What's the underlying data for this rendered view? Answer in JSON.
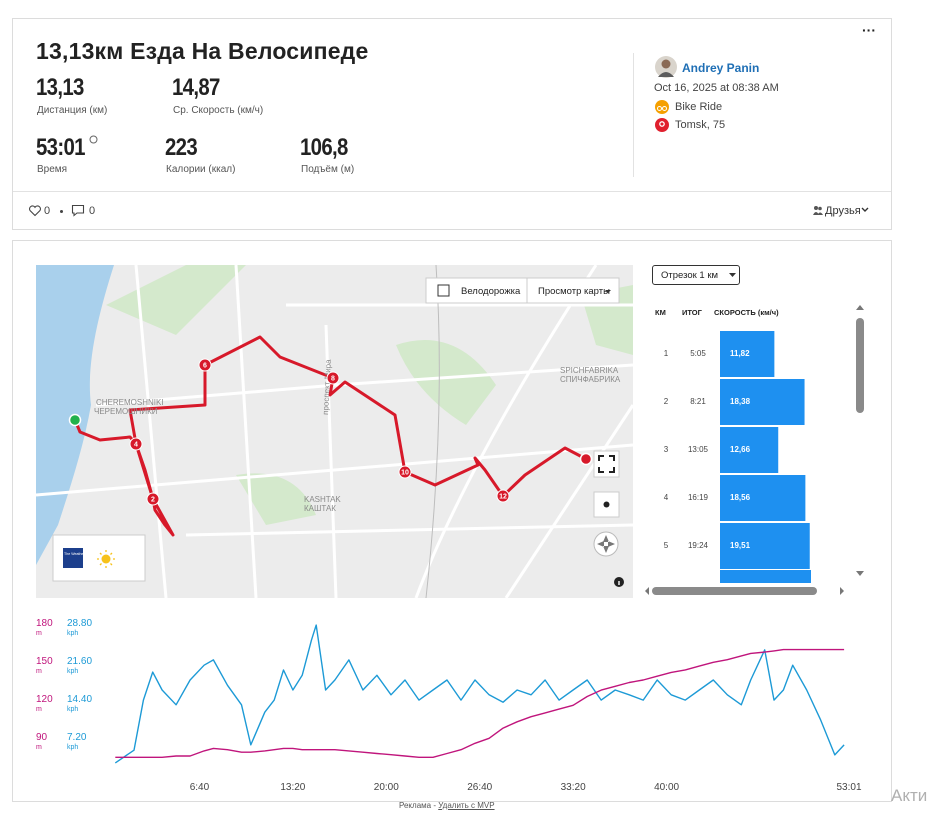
{
  "header": {
    "title": "13,13км Езда На Велосипеде",
    "stats": [
      {
        "value": "13,13",
        "label": "Дистанция (км)"
      },
      {
        "value": "14,87",
        "label": "Ср. Скорость (км/ч)"
      },
      {
        "value": "53:01",
        "label": "Время"
      },
      {
        "value": "223",
        "label": "Калории (ккал)"
      },
      {
        "value": "106,8",
        "label": "Подъём (м)"
      }
    ]
  },
  "athlete": {
    "name": "Andrey Panin",
    "date": "Oct 16, 2025 at 08:38 AM",
    "activity": "Bike Ride",
    "location": "Tomsk, 75"
  },
  "social": {
    "kudos": "0",
    "comments": "0",
    "visibility": "Друзья"
  },
  "map": {
    "toggle": "Велодорожка",
    "view_button": "Просмотр карты",
    "labels": [
      "CHEREMOSHNIKI",
      "ЧЕРЕМОШНИКИ",
      "проспект Мира",
      "KASHTAK",
      "КАШТАК",
      "SPICHFABRIKA",
      "СПИЧФАБРИКА"
    ],
    "markers": [
      "2",
      "4",
      "6",
      "8",
      "10",
      "12"
    ],
    "weather": "The Weather Channel"
  },
  "splits": {
    "selector": "Отрезок 1 км",
    "headers": [
      "КМ",
      "ИТОГ",
      "СКОРОСТЬ (км/ч)"
    ],
    "categories": [
      "1",
      "2",
      "3",
      "4",
      "5"
    ],
    "times": [
      "5:05",
      "8:21",
      "13:05",
      "16:19",
      "19:24"
    ],
    "values": [
      11.82,
      18.38,
      12.66,
      18.56,
      19.51
    ],
    "value_labels": [
      "11,82",
      "18,38",
      "12,66",
      "18,56",
      "19,51"
    ],
    "color": "#1e90f0"
  },
  "profile": {
    "type": "line",
    "x": [
      40,
      120,
      160,
      200,
      240,
      300,
      360,
      420,
      460,
      520,
      580,
      620,
      680,
      720,
      760,
      800,
      840,
      880,
      900,
      940,
      980,
      1040,
      1100,
      1160,
      1220,
      1280,
      1340,
      1400,
      1460,
      1520,
      1580,
      1640,
      1700,
      1760,
      1820,
      1880,
      1940,
      2000,
      2060,
      2120,
      2180,
      2240,
      2300,
      2360,
      2420,
      2480,
      2540,
      2600,
      2660,
      2720,
      2760,
      2820,
      2860,
      2900,
      2940,
      3000,
      3060,
      3120,
      3160
    ],
    "xlim": [
      0,
      3181
    ],
    "xticks": [
      {
        "value": 400,
        "label": "6:40"
      },
      {
        "value": 800,
        "label": "13:20"
      },
      {
        "value": 1200,
        "label": "20:00"
      },
      {
        "value": 1600,
        "label": "26:40"
      },
      {
        "value": 2000,
        "label": "33:20"
      },
      {
        "value": 2400,
        "label": "40:00"
      },
      {
        "value": 3181,
        "label": "53:01"
      }
    ],
    "ylim": [
      0,
      28.8
    ],
    "yticks": [
      {
        "value": 7.2,
        "label": "7.20"
      },
      {
        "value": 14.4,
        "label": "14.40"
      },
      {
        "value": 21.6,
        "label": "21.60"
      },
      {
        "value": 28.8,
        "label": "28.80"
      }
    ],
    "y_unit": "kph",
    "y2lim": [
      60,
      180
    ],
    "y2ticks": [
      90,
      120,
      150,
      180
    ],
    "y2_unit": "m",
    "series": [
      {
        "color": "#1d9ad6",
        "values": [
          2.3,
          4.7,
          14.2,
          19.5,
          16.1,
          13.3,
          18,
          20.8,
          21.8,
          17,
          13.3,
          5.7,
          11.9,
          14.2,
          19.9,
          16.1,
          18.9,
          25.6,
          28.4,
          16.1,
          18,
          21.8,
          16.1,
          18.9,
          15.2,
          18,
          14.2,
          16.1,
          18,
          14.2,
          18,
          15.2,
          13.8,
          16.1,
          15.2,
          18,
          14.2,
          16.1,
          18,
          14.2,
          16.1,
          15.2,
          14.2,
          18,
          15.2,
          14.2,
          16.1,
          18,
          15.2,
          13.3,
          18,
          23.7,
          14.2,
          16.1,
          20.8,
          16.1,
          10.4,
          3.8,
          5.7
        ]
      },
      {
        "color": "#c0157c",
        "axis": "y2",
        "values": [
          74,
          74,
          74,
          74,
          74,
          75,
          75,
          79,
          81,
          80,
          78,
          78,
          79,
          80,
          81,
          81,
          80,
          80,
          80,
          80,
          80,
          79,
          78,
          77,
          76,
          75,
          74,
          74,
          77,
          80,
          85,
          89,
          97,
          102,
          106,
          109,
          112,
          115,
          122,
          127,
          130,
          133,
          135,
          138,
          141,
          143,
          146,
          149,
          151,
          154,
          156,
          157,
          158,
          159,
          159,
          159,
          159,
          159,
          159
        ]
      }
    ]
  },
  "footer": {
    "ad": "Реклама -",
    "link": "Удалить с MVP"
  },
  "watermark": "Акти"
}
